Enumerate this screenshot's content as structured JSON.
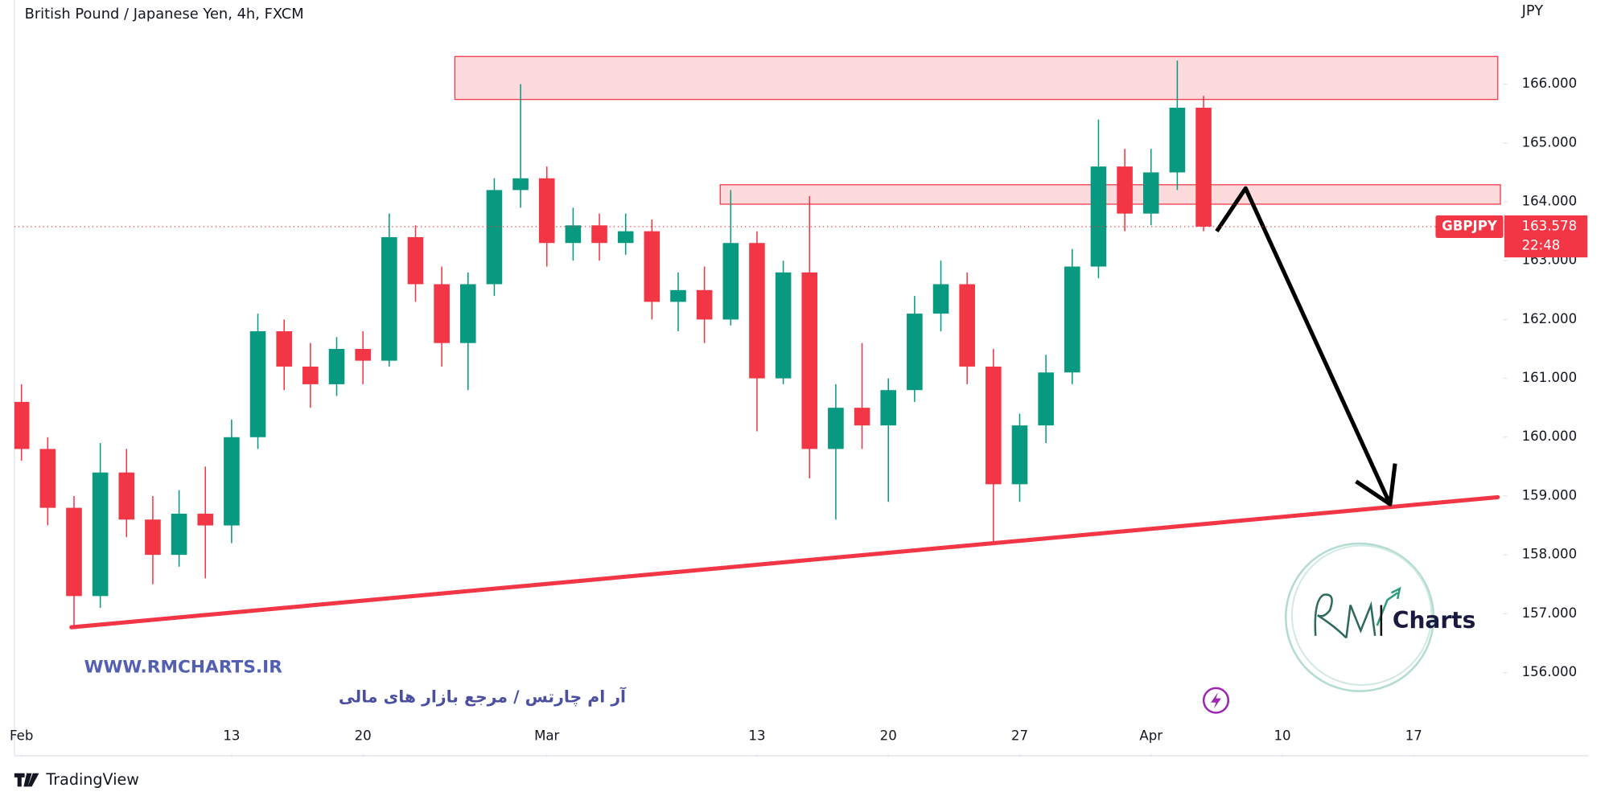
{
  "chart_data": {
    "type": "candlestick",
    "title": "British Pound / Japanese Yen, 4h, FXCM",
    "currency": "JPY",
    "symbol": "GBPJPY",
    "last_price": 163.578,
    "countdown": "22:48",
    "up_color": "#089981",
    "down_color": "#f23645",
    "x": [
      0,
      1,
      2,
      3,
      4,
      5,
      6,
      7,
      8,
      9,
      10,
      11,
      12,
      13,
      14,
      15,
      16,
      17,
      18,
      19,
      20,
      21,
      22,
      23,
      24,
      25,
      26,
      27,
      28,
      29,
      30,
      31,
      32,
      33,
      34,
      35,
      36,
      37,
      38,
      39,
      40,
      41,
      42,
      43,
      44,
      45
    ],
    "open": [
      160.6,
      159.8,
      158.8,
      157.3,
      159.4,
      158.6,
      158.0,
      158.7,
      158.5,
      160.0,
      161.8,
      161.2,
      160.9,
      161.5,
      161.3,
      163.4,
      162.6,
      161.6,
      162.6,
      164.2,
      164.4,
      163.3,
      163.6,
      163.3,
      163.5,
      162.3,
      162.5,
      162.0,
      163.3,
      161.0,
      162.8,
      159.8,
      160.5,
      160.2,
      160.8,
      162.1,
      162.6,
      161.2,
      159.2,
      160.2,
      161.1,
      162.9,
      164.6,
      163.8,
      164.5,
      165.6
    ],
    "high": [
      160.9,
      160.0,
      159.0,
      159.9,
      159.8,
      159.0,
      159.1,
      159.5,
      160.3,
      162.1,
      162.0,
      161.6,
      161.7,
      161.8,
      163.8,
      163.6,
      162.9,
      162.8,
      164.4,
      166.0,
      164.6,
      163.9,
      163.8,
      163.8,
      163.7,
      162.8,
      162.9,
      164.2,
      163.5,
      163.0,
      164.1,
      160.9,
      161.6,
      161.0,
      162.4,
      163.0,
      162.8,
      161.5,
      160.4,
      161.4,
      163.2,
      165.4,
      164.9,
      164.9,
      166.4,
      165.8
    ],
    "low": [
      159.6,
      158.5,
      156.8,
      157.1,
      158.3,
      157.5,
      157.8,
      157.6,
      158.2,
      159.8,
      160.8,
      160.5,
      160.7,
      160.9,
      161.2,
      162.3,
      161.2,
      160.8,
      162.4,
      163.9,
      162.9,
      163.0,
      163.0,
      163.1,
      162.0,
      161.8,
      161.6,
      161.9,
      160.1,
      160.9,
      159.3,
      158.6,
      159.8,
      158.9,
      160.6,
      161.8,
      160.9,
      158.2,
      158.9,
      159.9,
      160.9,
      162.7,
      163.5,
      163.6,
      164.2,
      163.5
    ],
    "close": [
      159.8,
      158.8,
      157.3,
      159.4,
      158.6,
      158.0,
      158.7,
      158.5,
      160.0,
      161.8,
      161.2,
      160.9,
      161.5,
      161.3,
      163.4,
      162.6,
      161.6,
      162.6,
      164.2,
      164.4,
      163.3,
      163.6,
      163.3,
      163.5,
      162.3,
      162.5,
      162.0,
      163.3,
      161.0,
      162.8,
      159.8,
      160.5,
      160.2,
      160.8,
      162.1,
      162.6,
      161.2,
      159.2,
      160.2,
      161.1,
      162.9,
      164.6,
      163.8,
      164.5,
      165.6,
      163.578
    ],
    "xlim": [
      -0.27,
      56.41
    ],
    "ylim": [
      154.62,
      167.43
    ],
    "xticks": [
      {
        "value": 0,
        "label": "Feb"
      },
      {
        "value": 8,
        "label": "13"
      },
      {
        "value": 13,
        "label": "20"
      },
      {
        "value": 20,
        "label": "Mar"
      },
      {
        "value": 28,
        "label": "13"
      },
      {
        "value": 33,
        "label": "20"
      },
      {
        "value": 38,
        "label": "27"
      },
      {
        "value": 43,
        "label": "Apr"
      },
      {
        "value": 48,
        "label": "10"
      },
      {
        "value": 53,
        "label": "17"
      }
    ],
    "yticks": [
      {
        "value": 156,
        "label": "156.000"
      },
      {
        "value": 157,
        "label": "157.000"
      },
      {
        "value": 158,
        "label": "158.000"
      },
      {
        "value": 159,
        "label": "159.000"
      },
      {
        "value": 160,
        "label": "160.000"
      },
      {
        "value": 161,
        "label": "161.000"
      },
      {
        "value": 162,
        "label": "162.000"
      },
      {
        "value": 163,
        "label": "163.000"
      },
      {
        "value": 164,
        "label": "164.000"
      },
      {
        "value": 165,
        "label": "165.000"
      },
      {
        "value": 166,
        "label": "166.000"
      }
    ],
    "zones": [
      {
        "x": [
          16.5,
          56.2
        ],
        "y": [
          165.74,
          166.47
        ]
      },
      {
        "x": [
          26.6,
          56.3
        ],
        "y": [
          163.96,
          164.29
        ]
      }
    ],
    "trendline": {
      "x": [
        1.9,
        56.2
      ],
      "y": [
        156.77,
        158.98
      ]
    },
    "arrow": {
      "x": [
        45.5,
        46.6,
        52.1
      ],
      "y": [
        163.5,
        164.23,
        158.86
      ]
    },
    "watermark": {
      "url": "WWW.RMCHARTS.IR",
      "tagline": "آر ام چارتس / مرجع بازار های مالی",
      "logo": "Charts"
    },
    "branding": "TradingView"
  }
}
